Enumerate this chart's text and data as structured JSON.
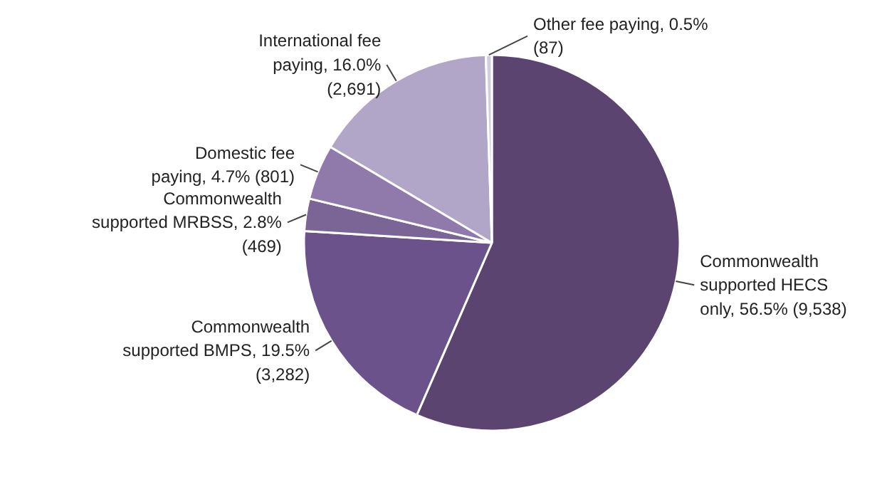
{
  "chart_data": {
    "type": "pie",
    "categories": [
      "Commonwealth supported HECS only",
      "Commonwealth supported BMPS",
      "Commonwealth supported MRBSS",
      "Domestic fee paying",
      "International fee paying",
      "Other fee paying"
    ],
    "values": [
      9538,
      3282,
      469,
      801,
      2691,
      87
    ],
    "value_labels": [
      "56.5% (9,538)",
      "19.5% (3,282)",
      "2.8% (469)",
      "4.7% (801)",
      "16.0% (2,691)",
      "0.5% (87)"
    ],
    "colors": [
      "#5b4470",
      "#6b528a",
      "#7a6596",
      "#8f7aab",
      "#b1a5c8",
      "#d4cde0"
    ],
    "legend": false
  }
}
